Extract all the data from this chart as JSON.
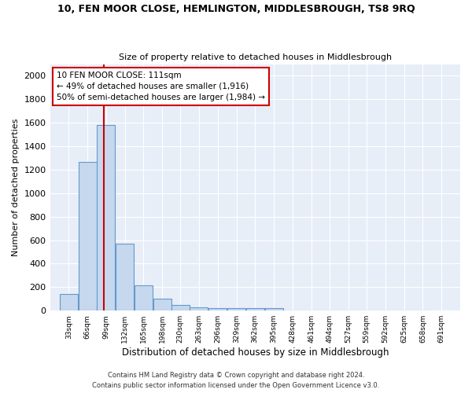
{
  "title1": "10, FEN MOOR CLOSE, HEMLINGTON, MIDDLESBROUGH, TS8 9RQ",
  "title2": "Size of property relative to detached houses in Middlesbrough",
  "xlabel": "Distribution of detached houses by size in Middlesbrough",
  "ylabel": "Number of detached properties",
  "bin_starts": [
    33,
    66,
    99,
    132,
    165,
    198,
    230,
    263,
    296,
    329,
    362,
    395,
    428,
    461,
    494,
    527,
    559,
    592,
    625,
    658,
    691
  ],
  "counts": [
    140,
    1270,
    1580,
    570,
    215,
    100,
    50,
    25,
    20,
    20,
    20,
    20,
    0,
    0,
    0,
    0,
    0,
    0,
    0,
    0
  ],
  "bar_color": "#c5d8ee",
  "bar_edge_color": "#6699cc",
  "bg_color": "#e8eef8",
  "red_line_x": 111,
  "annotation_line1": "10 FEN MOOR CLOSE: 111sqm",
  "annotation_line2": "← 49% of detached houses are smaller (1,916)",
  "annotation_line3": "50% of semi-detached houses are larger (1,984) →",
  "annotation_box_color": "#ffffff",
  "annotation_box_edge": "#cc0000",
  "red_line_color": "#cc0000",
  "ylim": [
    0,
    2100
  ],
  "yticks": [
    0,
    200,
    400,
    600,
    800,
    1000,
    1200,
    1400,
    1600,
    1800,
    2000
  ],
  "footer1": "Contains HM Land Registry data © Crown copyright and database right 2024.",
  "footer2": "Contains public sector information licensed under the Open Government Licence v3.0."
}
